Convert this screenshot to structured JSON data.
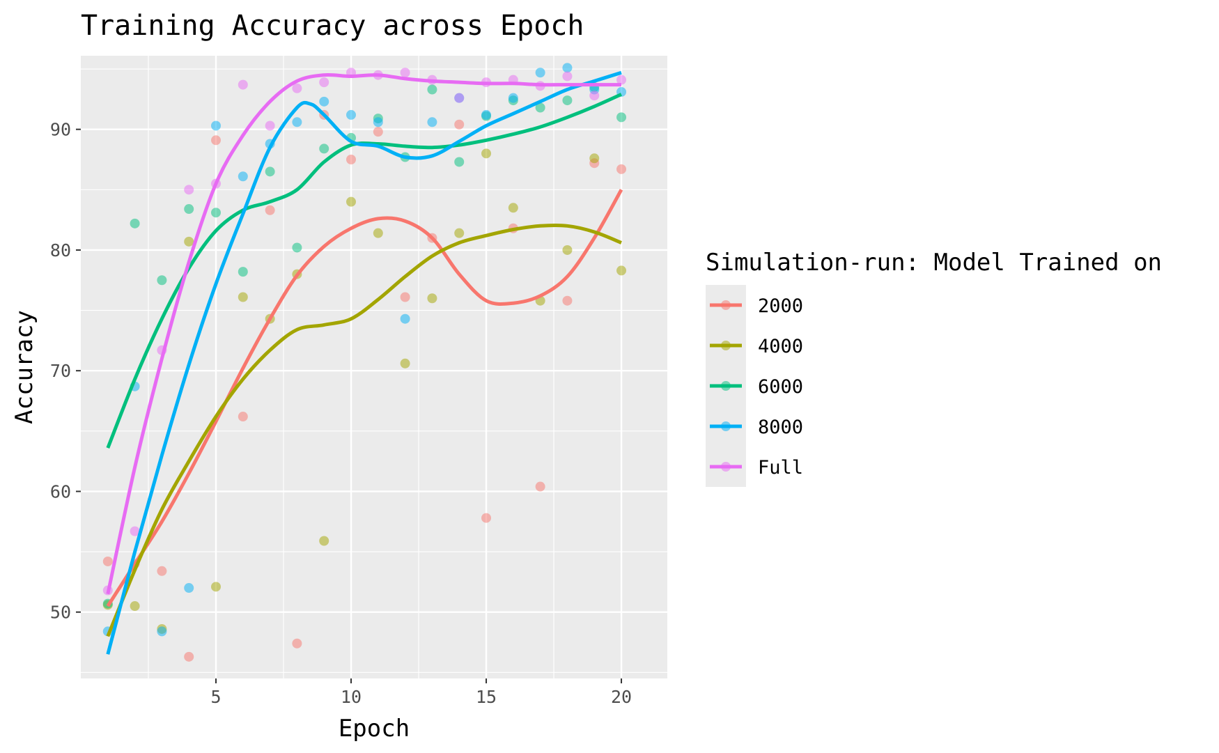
{
  "chart_data": {
    "type": "scatter",
    "title": "Training Accuracy across Epoch",
    "xlabel": "Epoch",
    "ylabel": "Accuracy",
    "xlim": [
      0,
      21.7
    ],
    "ylim": [
      44.5,
      96.1
    ],
    "x_ticks": [
      5,
      10,
      15,
      20
    ],
    "y_ticks": [
      50,
      60,
      70,
      80,
      90
    ],
    "grid": true,
    "legend_title": "Simulation-run: Model Trained on",
    "legend_position": "right",
    "series": [
      {
        "name": "2000",
        "color": "#F8766D",
        "points": [
          [
            1,
            54.2
          ],
          [
            2,
            54.0
          ],
          [
            3,
            53.4
          ],
          [
            4,
            46.3
          ],
          [
            5,
            89.1
          ],
          [
            6,
            66.2
          ],
          [
            7,
            83.3
          ],
          [
            8,
            47.4
          ],
          [
            9,
            91.2
          ],
          [
            10,
            87.5
          ],
          [
            11,
            89.8
          ],
          [
            12,
            76.1
          ],
          [
            13,
            81.0
          ],
          [
            14,
            90.4
          ],
          [
            15,
            57.8
          ],
          [
            16,
            81.8
          ],
          [
            17,
            60.4
          ],
          [
            18,
            75.8
          ],
          [
            19,
            87.2
          ],
          [
            20,
            86.7
          ]
        ],
        "smooth": [
          [
            1,
            50.5
          ],
          [
            2,
            54.0
          ],
          [
            3,
            57.5
          ],
          [
            4,
            61.5
          ],
          [
            5,
            65.8
          ],
          [
            6,
            70.2
          ],
          [
            7,
            74.3
          ],
          [
            8,
            77.9
          ],
          [
            9,
            80.3
          ],
          [
            10,
            81.8
          ],
          [
            11,
            82.6
          ],
          [
            12,
            82.4
          ],
          [
            13,
            81.0
          ],
          [
            14,
            78.0
          ],
          [
            15,
            75.8
          ],
          [
            16,
            75.6
          ],
          [
            17,
            76.2
          ],
          [
            18,
            77.8
          ],
          [
            19,
            81.0
          ],
          [
            20,
            85.0
          ]
        ]
      },
      {
        "name": "4000",
        "color": "#A3A500",
        "points": [
          [
            1,
            50.6
          ],
          [
            2,
            50.5
          ],
          [
            3,
            48.6
          ],
          [
            4,
            80.7
          ],
          [
            5,
            52.1
          ],
          [
            6,
            76.1
          ],
          [
            7,
            74.3
          ],
          [
            8,
            78.0
          ],
          [
            9,
            55.9
          ],
          [
            10,
            84.0
          ],
          [
            11,
            81.4
          ],
          [
            12,
            70.6
          ],
          [
            13,
            76.0
          ],
          [
            14,
            81.4
          ],
          [
            15,
            88.0
          ],
          [
            16,
            83.5
          ],
          [
            17,
            75.8
          ],
          [
            18,
            80.0
          ],
          [
            19,
            87.6
          ],
          [
            20,
            78.3
          ]
        ],
        "smooth": [
          [
            1,
            48.0
          ],
          [
            2,
            53.5
          ],
          [
            3,
            58.5
          ],
          [
            4,
            62.5
          ],
          [
            5,
            66.2
          ],
          [
            6,
            69.3
          ],
          [
            7,
            71.7
          ],
          [
            8,
            73.4
          ],
          [
            9,
            73.8
          ],
          [
            10,
            74.3
          ],
          [
            11,
            75.9
          ],
          [
            12,
            77.8
          ],
          [
            13,
            79.5
          ],
          [
            14,
            80.6
          ],
          [
            15,
            81.2
          ],
          [
            16,
            81.7
          ],
          [
            17,
            82.0
          ],
          [
            18,
            82.0
          ],
          [
            19,
            81.5
          ],
          [
            20,
            80.6
          ]
        ]
      },
      {
        "name": "6000",
        "color": "#00BF7D",
        "points": [
          [
            1,
            50.7
          ],
          [
            2,
            82.2
          ],
          [
            3,
            77.5
          ],
          [
            4,
            83.4
          ],
          [
            5,
            83.1
          ],
          [
            6,
            78.2
          ],
          [
            7,
            86.5
          ],
          [
            8,
            80.2
          ],
          [
            9,
            88.4
          ],
          [
            10,
            89.3
          ],
          [
            11,
            90.9
          ],
          [
            12,
            87.7
          ],
          [
            13,
            93.3
          ],
          [
            14,
            87.3
          ],
          [
            15,
            91.1
          ],
          [
            16,
            92.4
          ],
          [
            17,
            91.8
          ],
          [
            18,
            92.4
          ],
          [
            19,
            93.5
          ],
          [
            20,
            91.0
          ]
        ],
        "smooth": [
          [
            1,
            63.6
          ],
          [
            2,
            69.3
          ],
          [
            3,
            74.3
          ],
          [
            4,
            78.5
          ],
          [
            5,
            81.6
          ],
          [
            6,
            83.3
          ],
          [
            7,
            84.0
          ],
          [
            8,
            85.0
          ],
          [
            9,
            87.3
          ],
          [
            10,
            88.7
          ],
          [
            11,
            88.8
          ],
          [
            12,
            88.6
          ],
          [
            13,
            88.5
          ],
          [
            14,
            88.7
          ],
          [
            15,
            89.1
          ],
          [
            16,
            89.6
          ],
          [
            17,
            90.2
          ],
          [
            18,
            91.0
          ],
          [
            19,
            91.9
          ],
          [
            20,
            92.9
          ]
        ]
      },
      {
        "name": "8000",
        "color": "#00B0F6",
        "points": [
          [
            1,
            48.4
          ],
          [
            2,
            68.7
          ],
          [
            3,
            48.4
          ],
          [
            4,
            52.0
          ],
          [
            5,
            90.3
          ],
          [
            6,
            86.1
          ],
          [
            7,
            88.8
          ],
          [
            8,
            90.6
          ],
          [
            9,
            92.3
          ],
          [
            10,
            91.2
          ],
          [
            11,
            90.6
          ],
          [
            12,
            74.3
          ],
          [
            13,
            90.6
          ],
          [
            14,
            92.6
          ],
          [
            15,
            91.2
          ],
          [
            16,
            92.6
          ],
          [
            17,
            94.7
          ],
          [
            18,
            95.1
          ],
          [
            19,
            93.3
          ],
          [
            20,
            93.1
          ]
        ],
        "smooth": [
          [
            1,
            46.5
          ],
          [
            2,
            55.0
          ],
          [
            3,
            63.0
          ],
          [
            4,
            70.5
          ],
          [
            5,
            77.2
          ],
          [
            6,
            83.0
          ],
          [
            7,
            88.5
          ],
          [
            8,
            91.8
          ],
          [
            8.5,
            92.1
          ],
          [
            9,
            91.2
          ],
          [
            10,
            89.0
          ],
          [
            11,
            88.6
          ],
          [
            12,
            87.7
          ],
          [
            13,
            87.8
          ],
          [
            14,
            89.0
          ],
          [
            15,
            90.3
          ],
          [
            16,
            91.3
          ],
          [
            17,
            92.3
          ],
          [
            18,
            93.3
          ],
          [
            19,
            94.0
          ],
          [
            20,
            94.7
          ]
        ]
      },
      {
        "name": "Full",
        "color": "#E76BF3",
        "points": [
          [
            1,
            51.8
          ],
          [
            2,
            56.7
          ],
          [
            3,
            71.7
          ],
          [
            4,
            85.0
          ],
          [
            5,
            85.5
          ],
          [
            6,
            93.7
          ],
          [
            7,
            90.3
          ],
          [
            8,
            93.4
          ],
          [
            9,
            93.9
          ],
          [
            10,
            94.7
          ],
          [
            11,
            94.5
          ],
          [
            12,
            94.7
          ],
          [
            13,
            94.1
          ],
          [
            14,
            92.6
          ],
          [
            15,
            93.9
          ],
          [
            16,
            94.1
          ],
          [
            17,
            93.6
          ],
          [
            18,
            94.4
          ],
          [
            19,
            92.8
          ],
          [
            20,
            94.1
          ]
        ],
        "smooth": [
          [
            1,
            51.5
          ],
          [
            2,
            62.0
          ],
          [
            3,
            71.0
          ],
          [
            4,
            79.0
          ],
          [
            5,
            85.5
          ],
          [
            6,
            89.5
          ],
          [
            7,
            92.3
          ],
          [
            8,
            94.0
          ],
          [
            9,
            94.5
          ],
          [
            10,
            94.4
          ],
          [
            11,
            94.5
          ],
          [
            12,
            94.2
          ],
          [
            13,
            94.0
          ],
          [
            14,
            93.9
          ],
          [
            15,
            93.8
          ],
          [
            16,
            93.8
          ],
          [
            17,
            93.7
          ],
          [
            18,
            93.7
          ],
          [
            19,
            93.7
          ],
          [
            20,
            93.7
          ]
        ]
      }
    ]
  }
}
